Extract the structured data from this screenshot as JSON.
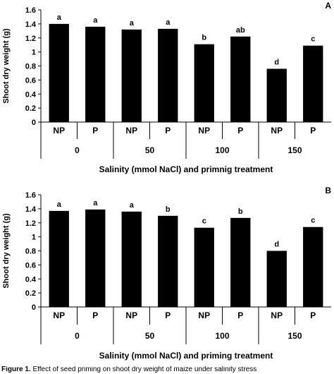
{
  "caption": {
    "figure_label": "Figure 1.",
    "text": "Effect of seed priming on shoot dry weight of maize under salinity stress"
  },
  "chart_data": [
    {
      "type": "bar",
      "panel_label": "A",
      "categories": [
        "NP",
        "P",
        "NP",
        "P",
        "NP",
        "P",
        "NP",
        "P"
      ],
      "groups": [
        "0",
        "50",
        "100",
        "150"
      ],
      "values": [
        1.4,
        1.36,
        1.32,
        1.33,
        1.11,
        1.22,
        0.76,
        1.09
      ],
      "letters": [
        "a",
        "a",
        "a",
        "a",
        "b",
        "ab",
        "d",
        "c"
      ],
      "ylabel": "Shoot dry weight (g)",
      "xlabel": "Salinity (mmol NaCl) and primnig treatment",
      "ylim": [
        0,
        1.6
      ],
      "yticks": [
        "0",
        "0.2",
        "0.4",
        "0.6",
        "0.8",
        "1",
        "1.2",
        "1.4",
        "1.6"
      ],
      "grid": false,
      "bar_color": "#000000"
    },
    {
      "type": "bar",
      "panel_label": "B",
      "categories": [
        "NP",
        "P",
        "NP",
        "P",
        "NP",
        "P",
        "NP",
        "P"
      ],
      "groups": [
        "0",
        "50",
        "100",
        "150"
      ],
      "values": [
        1.37,
        1.39,
        1.36,
        1.3,
        1.13,
        1.27,
        0.8,
        1.14
      ],
      "letters": [
        "a",
        "a",
        "a",
        "b",
        "c",
        "b",
        "d",
        "c"
      ],
      "ylabel": "Shoot dry weight (g)",
      "xlabel": "Salinity (mmol NaCl) and priming treatment",
      "ylim": [
        0,
        1.6
      ],
      "yticks": [
        "0",
        "0.2",
        "0.4",
        "0.6",
        "0.8",
        "1",
        "1.2",
        "1.4",
        "1.6"
      ],
      "grid": false,
      "bar_color": "#000000"
    }
  ]
}
